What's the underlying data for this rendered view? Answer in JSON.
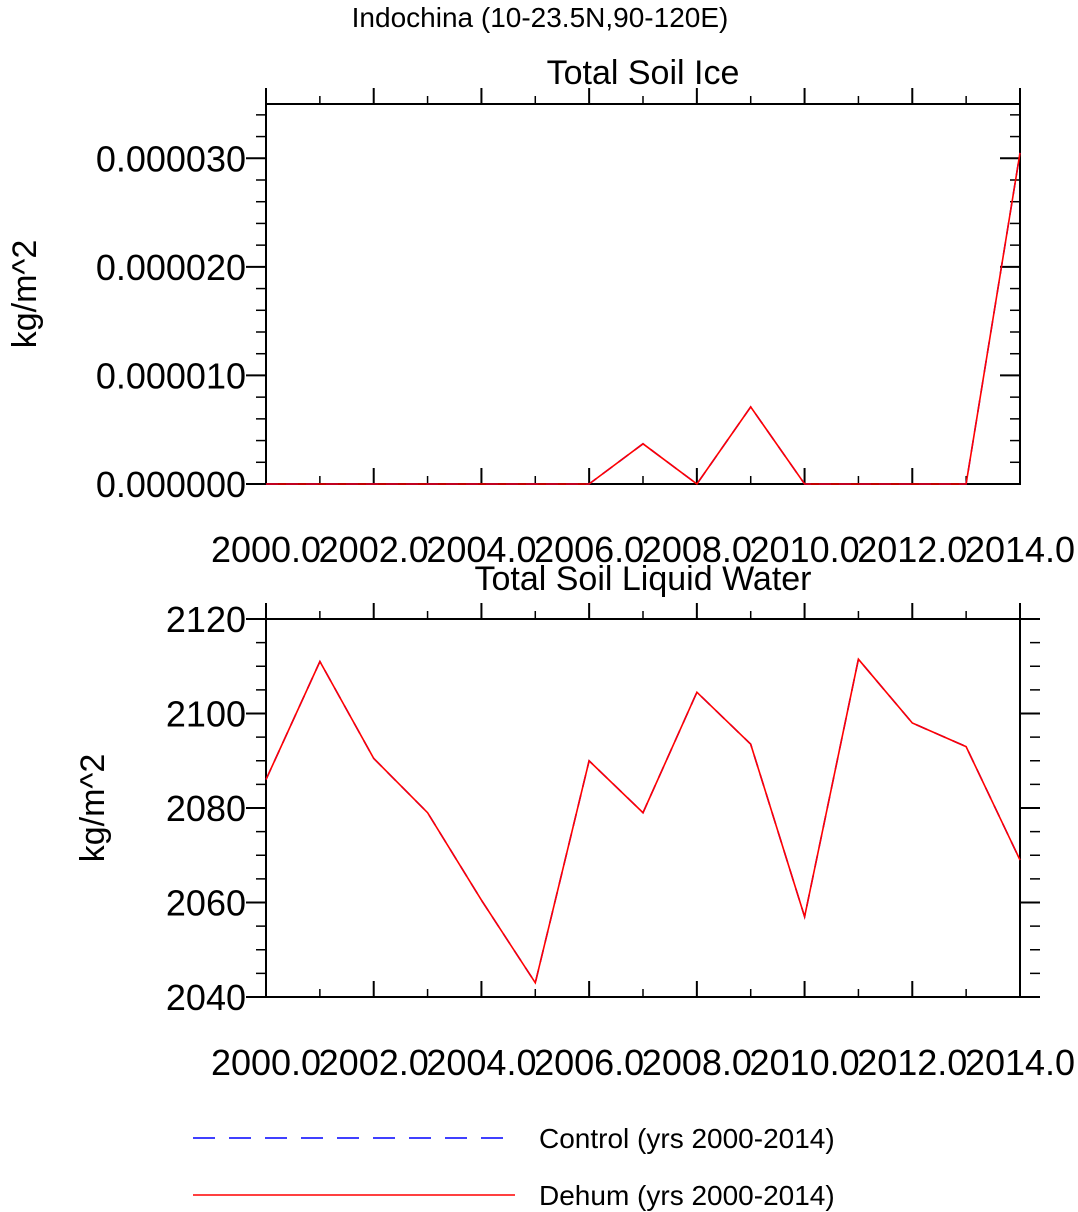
{
  "figure_title": "Indochina (10-23.5N,90-120E)",
  "chart_data": [
    {
      "type": "line",
      "title": "Total Soil Ice",
      "xlabel": "",
      "ylabel": "kg/m^2",
      "xlim": [
        2000,
        2014
      ],
      "ylim": [
        0,
        3.5e-05
      ],
      "x_ticks": [
        2000,
        2002,
        2004,
        2006,
        2008,
        2010,
        2012,
        2014
      ],
      "x_tick_labels": [
        "2000.0",
        "2002.0",
        "2004.0",
        "2006.0",
        "2008.0",
        "2010.0",
        "2012.0",
        "2014.0"
      ],
      "y_ticks": [
        0,
        1e-05,
        2e-05,
        3e-05
      ],
      "y_tick_labels": [
        "0.000000",
        "0.000010",
        "0.000020",
        "0.000030"
      ],
      "x": [
        2000,
        2001,
        2002,
        2003,
        2004,
        2005,
        2006,
        2007,
        2008,
        2009,
        2010,
        2011,
        2012,
        2013,
        2014
      ],
      "series": [
        {
          "name": "Control (yrs 2000-2014)",
          "color": "#0000ff",
          "dash": "dashed",
          "values": [
            0,
            0,
            0,
            0,
            0,
            0,
            0,
            3.7e-06,
            0,
            7.1e-06,
            0,
            0,
            0,
            0,
            3.05e-05
          ]
        },
        {
          "name": "Dehum (yrs 2000-2014)",
          "color": "#ff0000",
          "dash": "solid",
          "values": [
            0,
            0,
            0,
            0,
            0,
            0,
            0,
            3.7e-06,
            0,
            7.1e-06,
            0,
            0,
            0,
            0,
            3.05e-05
          ]
        }
      ]
    },
    {
      "type": "line",
      "title": "Total Soil Liquid Water",
      "xlabel": "",
      "ylabel": "kg/m^2",
      "xlim": [
        2000,
        2014
      ],
      "ylim": [
        2040,
        2120
      ],
      "x_ticks": [
        2000,
        2002,
        2004,
        2006,
        2008,
        2010,
        2012,
        2014
      ],
      "x_tick_labels": [
        "2000.0",
        "2002.0",
        "2004.0",
        "2006.0",
        "2008.0",
        "2010.0",
        "2012.0",
        "2014.0"
      ],
      "y_ticks": [
        2040,
        2060,
        2080,
        2100,
        2120
      ],
      "y_tick_labels": [
        "2040",
        "2060",
        "2080",
        "2100",
        "2120"
      ],
      "x": [
        2000,
        2001,
        2002,
        2003,
        2004,
        2005,
        2006,
        2007,
        2008,
        2009,
        2010,
        2011,
        2012,
        2013,
        2014
      ],
      "series": [
        {
          "name": "Control (yrs 2000-2014)",
          "color": "#0000ff",
          "dash": "dashed",
          "values": [
            2086,
            2111,
            2090.5,
            2079,
            2060.5,
            2043,
            2090,
            2079,
            2104.5,
            2093.5,
            2057,
            2111.5,
            2098,
            2093,
            2069
          ]
        },
        {
          "name": "Dehum (yrs 2000-2014)",
          "color": "#ff0000",
          "dash": "solid",
          "values": [
            2086,
            2111,
            2090.5,
            2079,
            2060.5,
            2043,
            2090,
            2079,
            2104.5,
            2093.5,
            2057,
            2111.5,
            2098,
            2093,
            2069
          ]
        }
      ]
    }
  ],
  "legend": [
    {
      "label": "Control (yrs 2000-2014)",
      "color": "#0000ff",
      "dash": "dashed"
    },
    {
      "label": "Dehum (yrs 2000-2014)",
      "color": "#ff0000",
      "dash": "solid"
    }
  ]
}
